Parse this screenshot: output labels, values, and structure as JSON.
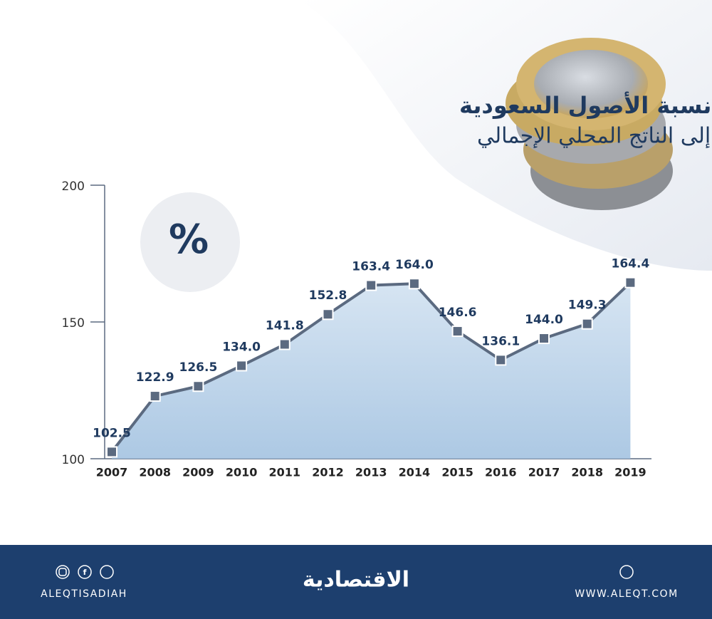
{
  "chart_data": {
    "type": "line",
    "title": "نسبة الأصول السعودية",
    "subtitle": "إلى الناتج المحلي الإجمالي",
    "annotation": "%",
    "categories": [
      "2007",
      "2008",
      "2009",
      "2010",
      "2011",
      "2012",
      "2013",
      "2014",
      "2015",
      "2016",
      "2017",
      "2018",
      "2019"
    ],
    "values": [
      102.5,
      122.9,
      126.5,
      134.0,
      141.8,
      152.8,
      163.4,
      164.0,
      146.6,
      136.1,
      144.0,
      149.3,
      164.4
    ],
    "value_labels": [
      "102.5",
      "122.9",
      "126.5",
      "134.0",
      "141.8",
      "152.8",
      "163.4",
      "164.0",
      "146.6",
      "136.1",
      "144.0",
      "149.3",
      "164.4"
    ],
    "color": "#5b6a80",
    "ylim": [
      100,
      200
    ],
    "yticks": [
      100,
      150,
      200
    ]
  },
  "footer": {
    "handle": "ALEQTISADIAH",
    "logo": "الاقتصادية",
    "website": "WWW.ALEQT.COM"
  }
}
